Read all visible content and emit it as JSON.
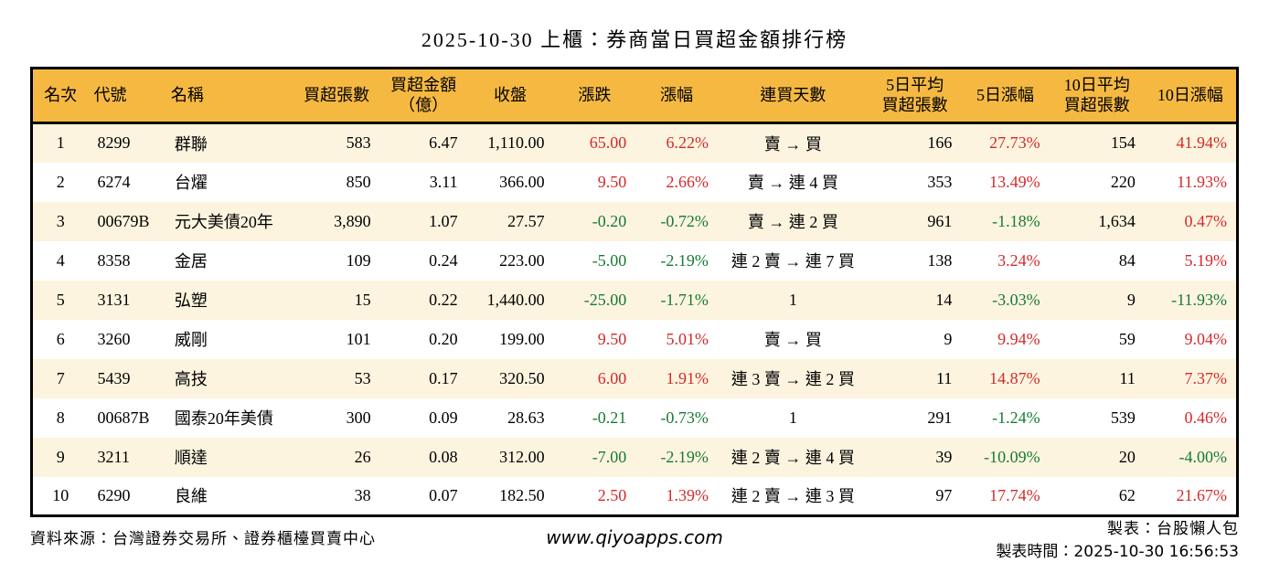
{
  "title": "2025-10-30 上櫃：券商當日買超金額排行榜",
  "colors": {
    "header_bg": "#F5B942",
    "row_alt_bg": "#FDF4DF",
    "row_bg": "#FFFFFF",
    "up_red": "#D32A2B",
    "down_green": "#177B33",
    "border": "#000000"
  },
  "table": {
    "columns": [
      {
        "key": "rank",
        "label": "名次",
        "align_head": "center",
        "align": "center",
        "width": "4.7%"
      },
      {
        "key": "code",
        "label": "代號",
        "align_head": "left",
        "align": "left",
        "width": "6.4%"
      },
      {
        "key": "name",
        "label": "名稱",
        "align_head": "left",
        "align": "left",
        "width": "10.6%"
      },
      {
        "key": "vol",
        "label": "買超張數",
        "align_head": "center",
        "align": "right",
        "width": "7.2%"
      },
      {
        "key": "amount",
        "label": "買超金額（億）",
        "lines": [
          "買超金額",
          "（億）"
        ],
        "align_head": "center",
        "align": "right",
        "width": "7.2%"
      },
      {
        "key": "close",
        "label": "收盤",
        "align_head": "center",
        "align": "right",
        "width": "7.2%"
      },
      {
        "key": "change",
        "label": "漲跌",
        "align_head": "center",
        "align": "right",
        "width": "6.8%",
        "signed": true
      },
      {
        "key": "pct",
        "label": "漲幅",
        "align_head": "center",
        "align": "right",
        "width": "6.8%",
        "signed": true
      },
      {
        "key": "streak",
        "label": "連買天數",
        "align_head": "center",
        "align": "center",
        "width": "12.5%"
      },
      {
        "key": "avg5",
        "label": "5日平均買超張數",
        "lines": [
          "5日平均",
          "買超張數"
        ],
        "align_head": "center",
        "align": "right",
        "width": "7.7%"
      },
      {
        "key": "pct5",
        "label": "5日漲幅",
        "align_head": "center",
        "align": "right",
        "width": "7.3%",
        "signed": true
      },
      {
        "key": "avg10",
        "label": "10日平均買超張數",
        "lines": [
          "10日平均",
          "買超張數"
        ],
        "align_head": "center",
        "align": "right",
        "width": "7.9%"
      },
      {
        "key": "pct10",
        "label": "10日漲幅",
        "align_head": "center",
        "align": "right",
        "width": "7.7%",
        "signed": true
      }
    ],
    "rows": [
      {
        "rank": "1",
        "code": "8299",
        "name": "群聯",
        "vol": "583",
        "amount": "6.47",
        "close": "1,110.00",
        "change": "65.00",
        "pct": "6.22%",
        "streak": "賣 → 買",
        "avg5": "166",
        "pct5": "27.73%",
        "avg10": "154",
        "pct10": "41.94%"
      },
      {
        "rank": "2",
        "code": "6274",
        "name": "台燿",
        "vol": "850",
        "amount": "3.11",
        "close": "366.00",
        "change": "9.50",
        "pct": "2.66%",
        "streak": "賣 → 連 4 買",
        "avg5": "353",
        "pct5": "13.49%",
        "avg10": "220",
        "pct10": "11.93%"
      },
      {
        "rank": "3",
        "code": "00679B",
        "name": "元大美債20年",
        "vol": "3,890",
        "amount": "1.07",
        "close": "27.57",
        "change": "-0.20",
        "pct": "-0.72%",
        "streak": "賣 → 連 2 買",
        "avg5": "961",
        "pct5": "-1.18%",
        "avg10": "1,634",
        "pct10": "0.47%"
      },
      {
        "rank": "4",
        "code": "8358",
        "name": "金居",
        "vol": "109",
        "amount": "0.24",
        "close": "223.00",
        "change": "-5.00",
        "pct": "-2.19%",
        "streak": "連 2 賣 → 連 7 買",
        "avg5": "138",
        "pct5": "3.24%",
        "avg10": "84",
        "pct10": "5.19%"
      },
      {
        "rank": "5",
        "code": "3131",
        "name": "弘塑",
        "vol": "15",
        "amount": "0.22",
        "close": "1,440.00",
        "change": "-25.00",
        "pct": "-1.71%",
        "streak": "1",
        "avg5": "14",
        "pct5": "-3.03%",
        "avg10": "9",
        "pct10": "-11.93%"
      },
      {
        "rank": "6",
        "code": "3260",
        "name": "威剛",
        "vol": "101",
        "amount": "0.20",
        "close": "199.00",
        "change": "9.50",
        "pct": "5.01%",
        "streak": "賣 → 買",
        "avg5": "9",
        "pct5": "9.94%",
        "avg10": "59",
        "pct10": "9.04%"
      },
      {
        "rank": "7",
        "code": "5439",
        "name": "高技",
        "vol": "53",
        "amount": "0.17",
        "close": "320.50",
        "change": "6.00",
        "pct": "1.91%",
        "streak": "連 3 賣 → 連 2 買",
        "avg5": "11",
        "pct5": "14.87%",
        "avg10": "11",
        "pct10": "7.37%"
      },
      {
        "rank": "8",
        "code": "00687B",
        "name": "國泰20年美債",
        "vol": "300",
        "amount": "0.09",
        "close": "28.63",
        "change": "-0.21",
        "pct": "-0.73%",
        "streak": "1",
        "avg5": "291",
        "pct5": "-1.24%",
        "avg10": "539",
        "pct10": "0.46%"
      },
      {
        "rank": "9",
        "code": "3211",
        "name": "順達",
        "vol": "26",
        "amount": "0.08",
        "close": "312.00",
        "change": "-7.00",
        "pct": "-2.19%",
        "streak": "連 2 賣 → 連 4 買",
        "avg5": "39",
        "pct5": "-10.09%",
        "avg10": "20",
        "pct10": "-4.00%"
      },
      {
        "rank": "10",
        "code": "6290",
        "name": "良維",
        "vol": "38",
        "amount": "0.07",
        "close": "182.50",
        "change": "2.50",
        "pct": "1.39%",
        "streak": "連 2 賣 → 連 3 買",
        "avg5": "97",
        "pct5": "17.74%",
        "avg10": "62",
        "pct10": "21.67%"
      }
    ]
  },
  "footer": {
    "source": "資料來源：台灣證券交易所、證券櫃檯買賣中心",
    "website": "www.qiyoapps.com",
    "maker": "製表：台股懶人包",
    "made_time": "製表時間：2025-10-30 16:56:53"
  }
}
